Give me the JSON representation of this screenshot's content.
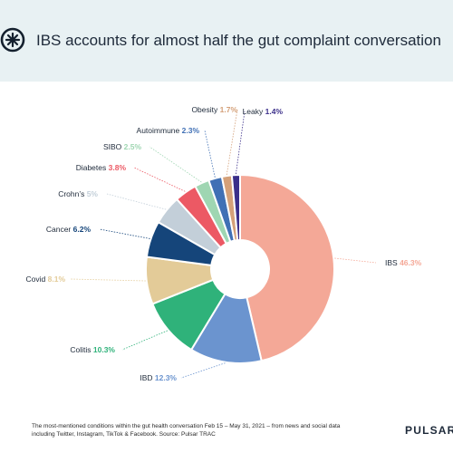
{
  "header": {
    "title": "IBS accounts for almost half the gut complaint conversation"
  },
  "chart_data": {
    "type": "donut",
    "title": "IBS accounts for almost half the gut complaint conversation",
    "unit": "%",
    "slices": [
      {
        "name": "IBS",
        "value": 46.3,
        "color": "#f4a897"
      },
      {
        "name": "IBD",
        "value": 12.3,
        "color": "#6b94cf"
      },
      {
        "name": "Colitis",
        "value": 10.3,
        "color": "#2fb27a"
      },
      {
        "name": "Covid",
        "value": 8.1,
        "color": "#e3cb98"
      },
      {
        "name": "Cancer",
        "value": 6.2,
        "color": "#15457a"
      },
      {
        "name": "Crohn’s",
        "value": 5,
        "color": "#c3cfd9"
      },
      {
        "name": "Diabetes",
        "value": 3.8,
        "color": "#ec5964"
      },
      {
        "name": "SIBO",
        "value": 2.5,
        "color": "#9fd6b2"
      },
      {
        "name": "Autoimmune",
        "value": 2.3,
        "color": "#4070b5"
      },
      {
        "name": "Obesity",
        "value": 1.7,
        "color": "#d4a079"
      },
      {
        "name": "Leaky",
        "value": 1.4,
        "color": "#3b2f8a"
      }
    ],
    "label_format": "{name} {value}%"
  },
  "footer": {
    "source_line1": "The most-mentioned conditions within the gut health conversation Feb 15 – May 31, 2021 – from news and social data",
    "source_line2": "including Twitter, Instagram, TikTok & Facebook. Source: Pulsar TRAC",
    "brand": "PULSAR"
  },
  "colors": {
    "header_bg": "#e8f1f3",
    "text_dark": "#1e2a3a"
  }
}
